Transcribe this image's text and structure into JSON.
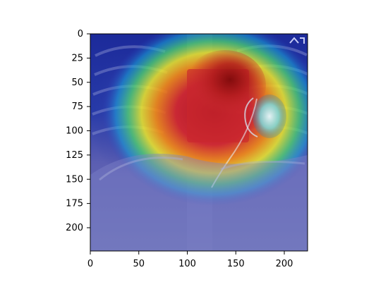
{
  "figure": {
    "background": "#ffffff",
    "image_description_free": true
  },
  "image_axes": {
    "x_ticks": [
      "0",
      "50",
      "100",
      "150",
      "200"
    ],
    "y_ticks": [
      "0",
      "25",
      "50",
      "75",
      "100",
      "125",
      "150",
      "175",
      "200"
    ],
    "x_tick_values": [
      0,
      50,
      100,
      150,
      200
    ],
    "y_tick_values": [
      0,
      25,
      50,
      75,
      100,
      125,
      150,
      175,
      200
    ],
    "xlim": [
      0,
      224
    ],
    "ylim": [
      224,
      0
    ]
  },
  "heatmap": {
    "colormap": "jet",
    "background_tint": "#2a2f86",
    "peak_color": "#8b0000"
  }
}
